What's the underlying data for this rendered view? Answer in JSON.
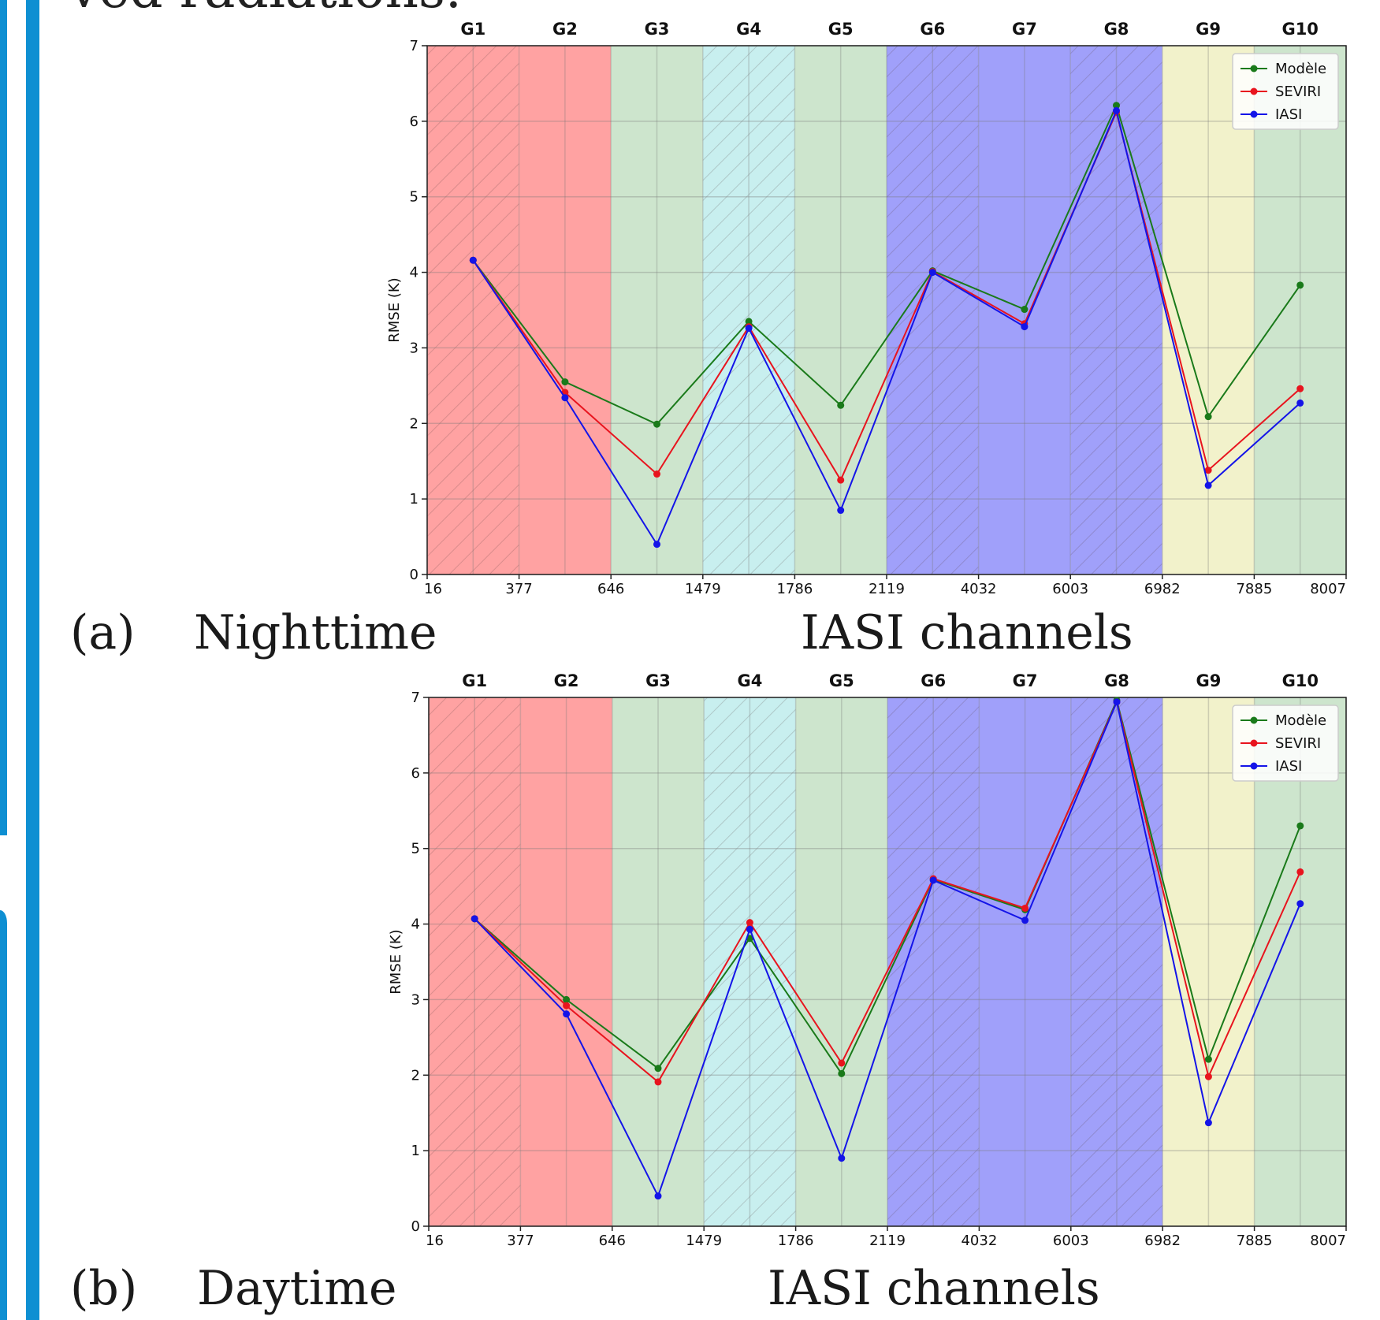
{
  "heading_fragment": "ved radiations.",
  "captions": [
    {
      "label": "(a)",
      "title": "Nighttime",
      "xlabel": "IASI channels"
    },
    {
      "label": "(b)",
      "title": "Daytime",
      "xlabel": "IASI channels"
    }
  ],
  "colors": {
    "accent_bar": "#0e8fd2",
    "model": "#1a7a1a",
    "seviri": "#e8141e",
    "iasi": "#1414e8",
    "band_red": "#ffa2a2",
    "band_green": "#cde5cd",
    "band_cyan": "#c8efef",
    "band_blue": "#a0a0fa",
    "band_yellow": "#f2f2cb"
  },
  "chart_data": [
    {
      "type": "line",
      "groups": [
        "G1",
        "G2",
        "G3",
        "G4",
        "G5",
        "G6",
        "G7",
        "G8",
        "G9",
        "G10"
      ],
      "tick_labels": [
        "16",
        "377",
        "646",
        "1479",
        "1786",
        "2119",
        "4032",
        "6003",
        "6982",
        "7885",
        "8007"
      ],
      "ylabel": "RMSE (K)",
      "ylim": [
        0,
        7
      ],
      "yticks": [
        "0",
        "1",
        "2",
        "3",
        "4",
        "5",
        "6",
        "7"
      ],
      "grid": true,
      "legend_position": "top-right",
      "bands": [
        "red",
        "red",
        "green",
        "cyan",
        "green",
        "blue",
        "blue",
        "blue",
        "yellow",
        "green"
      ],
      "hatched": [
        true,
        false,
        false,
        true,
        false,
        true,
        false,
        true,
        false,
        false
      ],
      "series": [
        {
          "name": "Modèle",
          "color_key": "model",
          "values": [
            4.16,
            2.55,
            1.99,
            3.35,
            2.24,
            4.02,
            3.51,
            6.21,
            2.09,
            3.83
          ]
        },
        {
          "name": "SEVIRI",
          "color_key": "seviri",
          "values": [
            4.16,
            2.41,
            1.33,
            3.28,
            1.25,
            4.01,
            3.32,
            6.12,
            1.38,
            2.46
          ]
        },
        {
          "name": "IASI",
          "color_key": "iasi",
          "values": [
            4.16,
            2.34,
            0.4,
            3.26,
            0.85,
            4.0,
            3.28,
            6.14,
            1.18,
            2.27
          ]
        }
      ]
    },
    {
      "type": "line",
      "groups": [
        "G1",
        "G2",
        "G3",
        "G4",
        "G5",
        "G6",
        "G7",
        "G8",
        "G9",
        "G10"
      ],
      "tick_labels": [
        "16",
        "377",
        "646",
        "1479",
        "1786",
        "2119",
        "4032",
        "6003",
        "6982",
        "7885",
        "8007"
      ],
      "ylabel": "RMSE (K)",
      "ylim": [
        0,
        7
      ],
      "yticks": [
        "0",
        "1",
        "2",
        "3",
        "4",
        "5",
        "6",
        "7"
      ],
      "grid": true,
      "legend_position": "top-right",
      "bands": [
        "red",
        "red",
        "green",
        "cyan",
        "green",
        "blue",
        "blue",
        "blue",
        "yellow",
        "green"
      ],
      "hatched": [
        true,
        false,
        false,
        true,
        false,
        true,
        false,
        true,
        false,
        false
      ],
      "series": [
        {
          "name": "Modèle",
          "color_key": "model",
          "values": [
            4.07,
            3.0,
            2.09,
            3.81,
            2.02,
            4.59,
            4.19,
            6.96,
            2.21,
            5.3
          ]
        },
        {
          "name": "SEVIRI",
          "color_key": "seviri",
          "values": [
            4.07,
            2.92,
            1.91,
            4.02,
            2.16,
            4.6,
            4.21,
            6.94,
            1.98,
            4.69
          ]
        },
        {
          "name": "IASI",
          "color_key": "iasi",
          "values": [
            4.07,
            2.81,
            0.4,
            3.93,
            0.9,
            4.58,
            4.05,
            6.94,
            1.37,
            4.27
          ]
        }
      ]
    }
  ]
}
